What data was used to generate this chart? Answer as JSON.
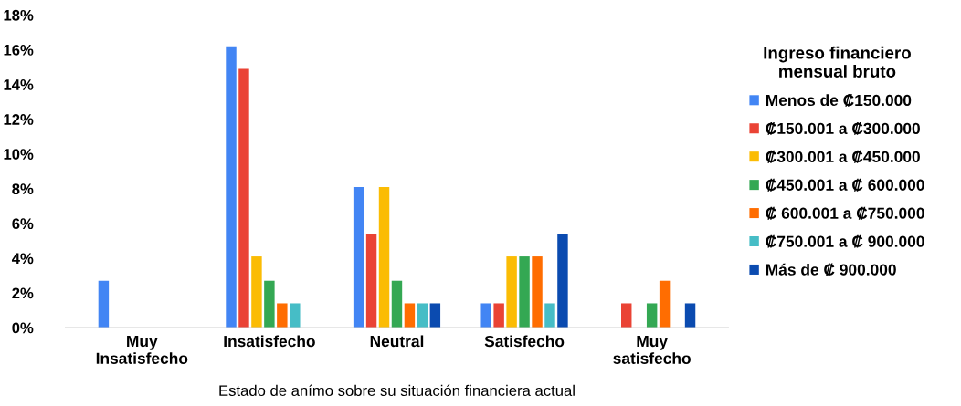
{
  "chart_data": {
    "type": "bar",
    "xlabel": "Estado de anímo sobre su situación financiera actual",
    "legend_title": "Ingreso financiero\nmensual bruto",
    "categories": [
      "Muy\nInsatisfecho",
      "Insatisfecho",
      "Neutral",
      "Satisfecho",
      "Muy\nsatisfecho"
    ],
    "series": [
      {
        "name": "Menos de ₡150.000",
        "color": "#4285f4",
        "values": [
          2.7,
          16.2,
          8.1,
          1.4,
          0
        ]
      },
      {
        "name": "₡150.001 a ₡300.000",
        "color": "#ea4335",
        "values": [
          0,
          14.9,
          5.4,
          1.4,
          1.4
        ]
      },
      {
        "name": "₡300.001 a ₡450.000",
        "color": "#fbbc04",
        "values": [
          0,
          4.1,
          8.1,
          4.1,
          0
        ]
      },
      {
        "name": "₡450.001 a ₡ 600.000",
        "color": "#34a853",
        "values": [
          0,
          2.7,
          2.7,
          4.1,
          1.4
        ]
      },
      {
        "name": "₡ 600.001 a ₡750.000",
        "color": "#ff6d01",
        "values": [
          0,
          1.4,
          1.4,
          4.1,
          2.7
        ]
      },
      {
        "name": "₡750.001 a ₡ 900.000",
        "color": "#46bdc6",
        "values": [
          0,
          1.4,
          1.4,
          1.4,
          0
        ]
      },
      {
        "name": "Más de ₡ 900.000",
        "color": "#0b4bb0",
        "values": [
          0,
          0,
          1.4,
          5.4,
          1.4
        ]
      }
    ],
    "ylim": [
      0,
      18
    ],
    "yticks": [
      {
        "value": 0,
        "label": "0%"
      },
      {
        "value": 2,
        "label": "2%"
      },
      {
        "value": 4,
        "label": "4%"
      },
      {
        "value": 6,
        "label": "6%"
      },
      {
        "value": 8,
        "label": "8%"
      },
      {
        "value": 10,
        "label": "10%"
      },
      {
        "value": 12,
        "label": "12%"
      },
      {
        "value": 14,
        "label": "14%"
      },
      {
        "value": 16,
        "label": "16%"
      },
      {
        "value": 18,
        "label": "18%"
      }
    ],
    "grid": false,
    "legend": "right"
  }
}
